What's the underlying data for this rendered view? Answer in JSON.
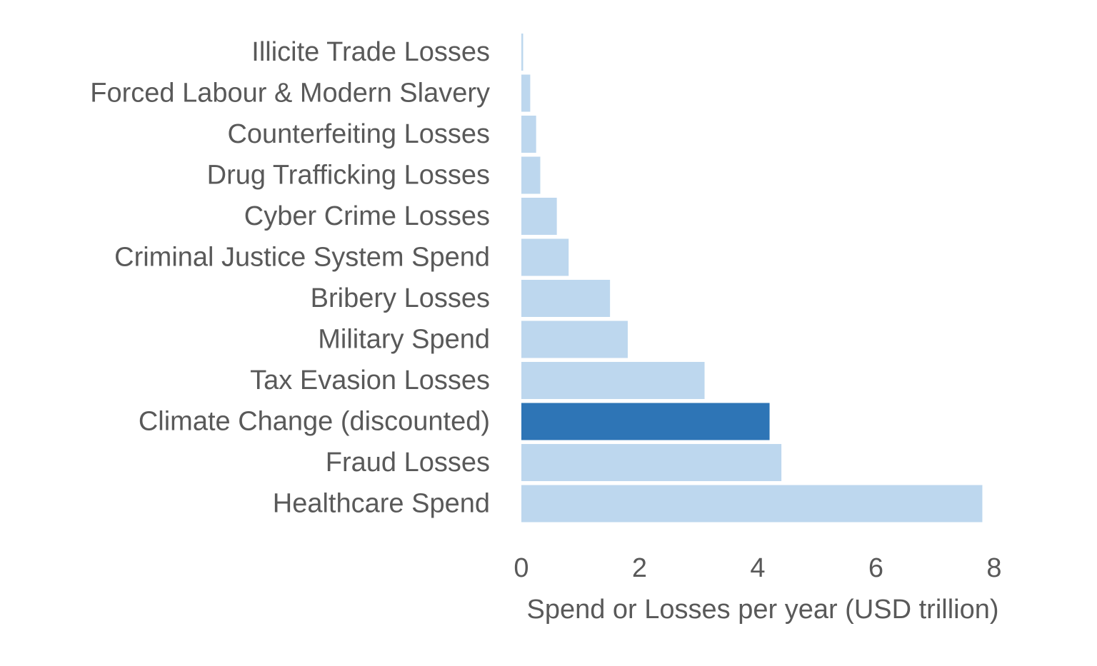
{
  "chart_data": {
    "type": "bar",
    "orientation": "horizontal",
    "categories": [
      "Illicite Trade Losses",
      "Forced Labour & Modern Slavery",
      "Counterfeiting Losses",
      "Drug Trafficking Losses",
      "Cyber Crime Losses",
      "Criminal Justice System Spend",
      "Bribery Losses",
      "Military Spend",
      "Tax Evasion Losses",
      "Climate Change (discounted)",
      "Fraud Losses",
      "Healthcare Spend"
    ],
    "values": [
      0.03,
      0.15,
      0.25,
      0.32,
      0.6,
      0.8,
      1.5,
      1.8,
      3.1,
      4.2,
      4.4,
      7.8
    ],
    "highlight_category": "Climate Change (discounted)",
    "colors": {
      "default": "#bdd7ee",
      "highlight": "#2e75b6",
      "text": "#595959"
    },
    "xlabel": "Spend or Losses per year (USD trillion)",
    "ylabel": "",
    "title": "",
    "xlim": [
      0,
      8
    ],
    "xticks": [
      "0",
      "2",
      "4",
      "6",
      "8"
    ],
    "grid": false,
    "legend": "none"
  }
}
